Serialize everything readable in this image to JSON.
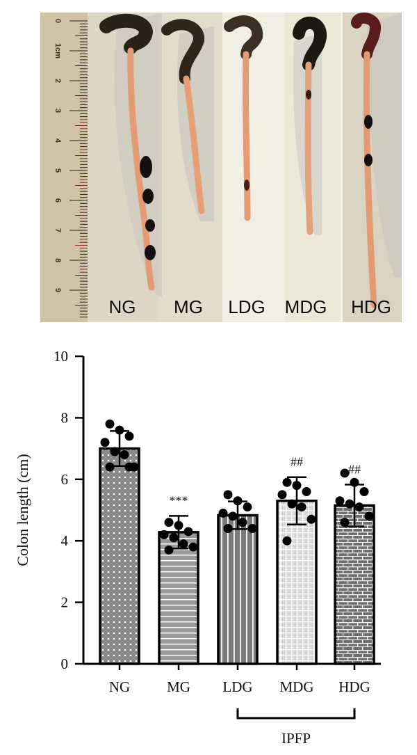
{
  "photo": {
    "group_labels": [
      "NG",
      "MG",
      "LDG",
      "MDG",
      "HDG"
    ],
    "ruler_labels": [
      "0",
      "1cm",
      "2",
      "3",
      "4",
      "5",
      "6",
      "7",
      "8",
      "9"
    ]
  },
  "chart_data": {
    "type": "bar",
    "categories": [
      "NG",
      "MG",
      "LDG",
      "MDG",
      "HDG"
    ],
    "values": [
      7.0,
      4.28,
      4.83,
      5.3,
      5.15
    ],
    "error": [
      0.57,
      0.53,
      0.45,
      0.77,
      0.68
    ],
    "points": [
      [
        7.8,
        7.6,
        7.4,
        7.2,
        6.9,
        6.8,
        6.4,
        6.4,
        6.4
      ],
      [
        4.6,
        4.5,
        4.3,
        4.2,
        4.1,
        3.9,
        3.8,
        3.7
      ],
      [
        5.5,
        5.3,
        5.1,
        4.9,
        4.8,
        4.6,
        4.4,
        4.4
      ],
      [
        5.9,
        5.8,
        5.6,
        5.5,
        5.2,
        5.1,
        4.7,
        4.0
      ],
      [
        6.2,
        5.9,
        5.6,
        5.3,
        5.2,
        5.1,
        4.8,
        4.6
      ]
    ],
    "annotations": [
      "",
      "***",
      "",
      "##",
      "##"
    ],
    "ylabel": "Colon length (cm)",
    "xlabel": "",
    "ylim": [
      0,
      10
    ],
    "yticks": [
      0,
      2,
      4,
      6,
      8,
      10
    ],
    "bracket_label": "IPFP",
    "bracket_groups": [
      "LDG",
      "HDG"
    ],
    "bar_patterns": [
      "dots",
      "horizontal-lines",
      "vertical-lines",
      "grid",
      "brick"
    ],
    "bar_fill_colors": [
      "#8a8a8a",
      "#9a9a9a",
      "#7a7a7a",
      "#d8d8d8",
      "#6f6f6f"
    ],
    "grid": false,
    "legend": "none"
  }
}
